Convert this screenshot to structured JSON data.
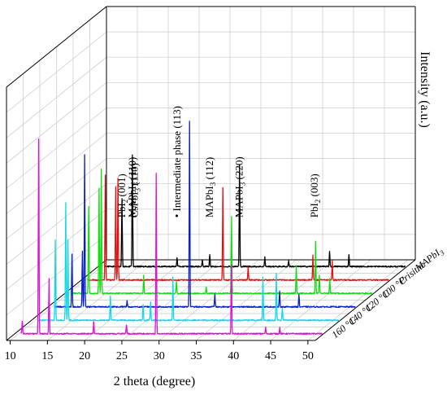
{
  "chart_data": {
    "type": "line",
    "subtype": "3d-waterfall",
    "title": "",
    "xlabel": "2 theta (degree)",
    "ylabel": "Intensity (a.u.)",
    "xlim": [
      9.5,
      51
    ],
    "x_ticks": [
      "10",
      "15",
      "20",
      "25",
      "30",
      "35",
      "40",
      "45",
      "50"
    ],
    "grid": true,
    "annotations": [
      {
        "label": "PbI$_2$ (001)",
        "text_parts": [
          "PbI",
          "2",
          " (001)"
        ],
        "x": 12.7
      },
      {
        "label": "MAPbI$_3$ (110)",
        "text_parts": [
          "MAPbI",
          "3",
          " (110)"
        ],
        "x": 14.1
      },
      {
        "label": "CsPbI$_3$ (110)",
        "text_parts": [
          "CsPbI",
          "3",
          " (110)"
        ],
        "x": 14.4
      },
      {
        "label": "• Intermediate phase (113)",
        "text_parts": [
          "• Intermediate phase (113)",
          "",
          ""
        ],
        "x": 20.1
      },
      {
        "label": "MAPbI$_3$ (112)",
        "text_parts": [
          "MAPbI",
          "3",
          " (112)"
        ],
        "x": 24.5
      },
      {
        "label": "MAPbI$_3$ (220)",
        "text_parts": [
          "MAPbI",
          "3",
          " (220)"
        ],
        "x": 28.5
      },
      {
        "label": "PbI$_2$ (003)",
        "text_parts": [
          "PbI",
          "2",
          " (003)"
        ],
        "x": 38.6
      }
    ],
    "series": [
      {
        "name": "MAPbI3",
        "label_parts": [
          "MAPbI",
          "3"
        ],
        "color": "#000000",
        "peaks": [
          [
            12.7,
            0.22
          ],
          [
            14.1,
            0.36
          ],
          [
            20.1,
            0.03
          ],
          [
            23.5,
            0.02
          ],
          [
            24.5,
            0.04
          ],
          [
            28.5,
            0.33
          ],
          [
            31.9,
            0.03
          ],
          [
            35.1,
            0.02
          ],
          [
            40.6,
            0.05
          ],
          [
            43.2,
            0.04
          ]
        ]
      },
      {
        "name": "Prisitne",
        "label_parts": [
          "Prisitne",
          ""
        ],
        "color": "#e01010",
        "peaks": [
          [
            12.7,
            0.34
          ],
          [
            14.1,
            0.3
          ],
          [
            14.4,
            0.33
          ],
          [
            28.5,
            0.3
          ],
          [
            31.9,
            0.04
          ],
          [
            40.6,
            0.08
          ],
          [
            43.2,
            0.06
          ]
        ]
      },
      {
        "name": "100 °C",
        "label_parts": [
          "100 °C",
          ""
        ],
        "color": "#10dd10",
        "peaks": [
          [
            12.7,
            0.28
          ],
          [
            14.1,
            0.34
          ],
          [
            14.4,
            0.4
          ],
          [
            20.1,
            0.06
          ],
          [
            24.5,
            0.04
          ],
          [
            28.5,
            0.02
          ],
          [
            31.9,
            0.25
          ],
          [
            40.6,
            0.09
          ],
          [
            43.2,
            0.17
          ],
          [
            43.7,
            0.06
          ],
          [
            45.1,
            0.05
          ]
        ]
      },
      {
        "name": "120 °C",
        "label_parts": [
          "120 °C",
          ""
        ],
        "color": "#0a20c0",
        "peaks": [
          [
            12.7,
            0.17
          ],
          [
            14.1,
            0.18
          ],
          [
            14.4,
            0.49
          ],
          [
            20.1,
            0.02
          ],
          [
            28.5,
            0.6
          ],
          [
            31.9,
            0.04
          ],
          [
            40.6,
            0.05
          ],
          [
            43.2,
            0.04
          ]
        ]
      },
      {
        "name": "140 °C",
        "label_parts": [
          "140 °C",
          ""
        ],
        "color": "#10d8e8",
        "peaks": [
          [
            12.7,
            0.26
          ],
          [
            14.1,
            0.38
          ],
          [
            14.4,
            0.26
          ],
          [
            20.1,
            0.08
          ],
          [
            24.5,
            0.05
          ],
          [
            25.5,
            0.06
          ],
          [
            28.5,
            0.14
          ],
          [
            40.6,
            0.14
          ],
          [
            42.4,
            0.15
          ],
          [
            43.2,
            0.04
          ]
        ]
      },
      {
        "name": "160 °C",
        "label_parts": [
          "160 °C",
          ""
        ],
        "color": "#e010d8",
        "peaks": [
          [
            10.5,
            0.04
          ],
          [
            12.7,
            0.63
          ],
          [
            14.1,
            0.18
          ],
          [
            20.1,
            0.04
          ],
          [
            24.5,
            0.03
          ],
          [
            28.5,
            0.52
          ],
          [
            38.6,
            0.22
          ],
          [
            43.2,
            0.02
          ],
          [
            45.1,
            0.02
          ]
        ]
      }
    ]
  }
}
